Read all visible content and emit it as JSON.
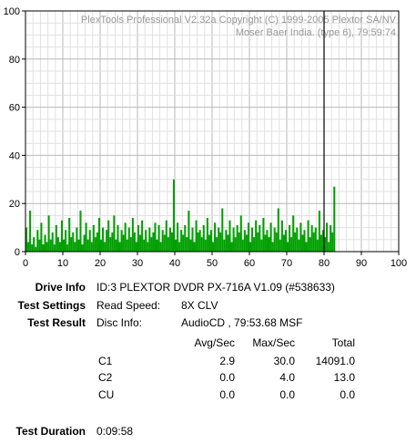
{
  "chart_data": {
    "type": "bar",
    "watermark": [
      "PlexTools Professional V2.32a Copyright (C) 1999-2005 Plextor SA/NV",
      "Moser Baer India. (type 6), 79:59:74"
    ],
    "xlim": [
      0,
      100
    ],
    "ylim": [
      0,
      100
    ],
    "x_ticks": [
      "0",
      "10",
      "20",
      "30",
      "40",
      "50",
      "60",
      "70",
      "80",
      "90",
      "100"
    ],
    "y_ticks": [
      "0",
      "20",
      "40",
      "60",
      "80",
      "100"
    ],
    "grid": true,
    "bar_color": "#00a000",
    "end_marker_x": 80,
    "series": [
      {
        "x_start": 0,
        "x_step": 0.5,
        "values": [
          10,
          4,
          17,
          3,
          6,
          2,
          9,
          5,
          12,
          3,
          7,
          4,
          15,
          5,
          8,
          3,
          11,
          6,
          4,
          13,
          5,
          9,
          3,
          14,
          6,
          8,
          4,
          10,
          5,
          17,
          3,
          7,
          12,
          5,
          9,
          4,
          11,
          6,
          8,
          14,
          5,
          10,
          4,
          9,
          13,
          6,
          8,
          15,
          5,
          11,
          4,
          9,
          7,
          12,
          5,
          10,
          6,
          14,
          8,
          4,
          11,
          7,
          13,
          5,
          9,
          4,
          10,
          6,
          8,
          12,
          5,
          11,
          4,
          9,
          7,
          13,
          6,
          10,
          8,
          30,
          5,
          12,
          4,
          9,
          7,
          11,
          6,
          17,
          5,
          10,
          4,
          13,
          8,
          9,
          6,
          11,
          5,
          14,
          7,
          9,
          4,
          12,
          6,
          10,
          8,
          18,
          5,
          9,
          7,
          13,
          4,
          10,
          6,
          11,
          8,
          15,
          5,
          9,
          7,
          12,
          4,
          10,
          6,
          13,
          8,
          11,
          5,
          14,
          7,
          9,
          6,
          12,
          4,
          10,
          8,
          18,
          5,
          13,
          7,
          9,
          4,
          11,
          6,
          15,
          8,
          10,
          5,
          12,
          7,
          9,
          4,
          13,
          6,
          11,
          8,
          10,
          5,
          17,
          7,
          9,
          6,
          12,
          4,
          11,
          8,
          27
        ]
      }
    ]
  },
  "info": {
    "drive_info_label": "Drive Info",
    "drive_info_value": "ID:3 PLEXTOR DVDR PX-716A V1.09 (#538633)",
    "test_settings_label": "Test Settings",
    "read_speed_label": "Read Speed:",
    "read_speed_value": "8X CLV",
    "test_result_label": "Test Result",
    "disc_info_label": "Disc Info:",
    "disc_info_value": "AudioCD , 79:53.68 MSF",
    "col_avg": "Avg/Sec",
    "col_max": "Max/Sec",
    "col_total": "Total",
    "rows": [
      {
        "name": "C1",
        "avg": "2.9",
        "max": "30.0",
        "total": "14091.0"
      },
      {
        "name": "C2",
        "avg": "0.0",
        "max": "4.0",
        "total": "13.0"
      },
      {
        "name": "CU",
        "avg": "0.0",
        "max": "0.0",
        "total": "0.0"
      }
    ],
    "test_duration_label": "Test Duration",
    "test_duration_value": "0:09:58"
  }
}
